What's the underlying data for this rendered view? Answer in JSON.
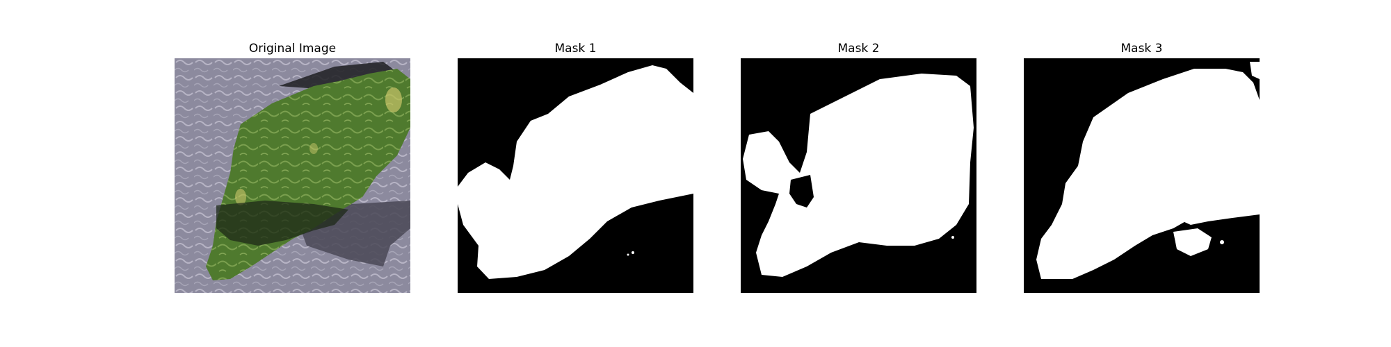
{
  "panels": [
    {
      "title": "Original Image",
      "image": "photo of green leaf with dark shadow on grey textured background"
    },
    {
      "title": "Mask 1",
      "image": "binary segmentation mask"
    },
    {
      "title": "Mask 2",
      "image": "binary segmentation mask"
    },
    {
      "title": "Mask 3",
      "image": "binary segmentation mask"
    }
  ],
  "colors": {
    "background_grey": "#8c8a9e",
    "leaf_green": "#4f7a2e",
    "shadow_dark": "#262a24",
    "mask_foreground": "#ffffff",
    "mask_background": "#000000"
  }
}
